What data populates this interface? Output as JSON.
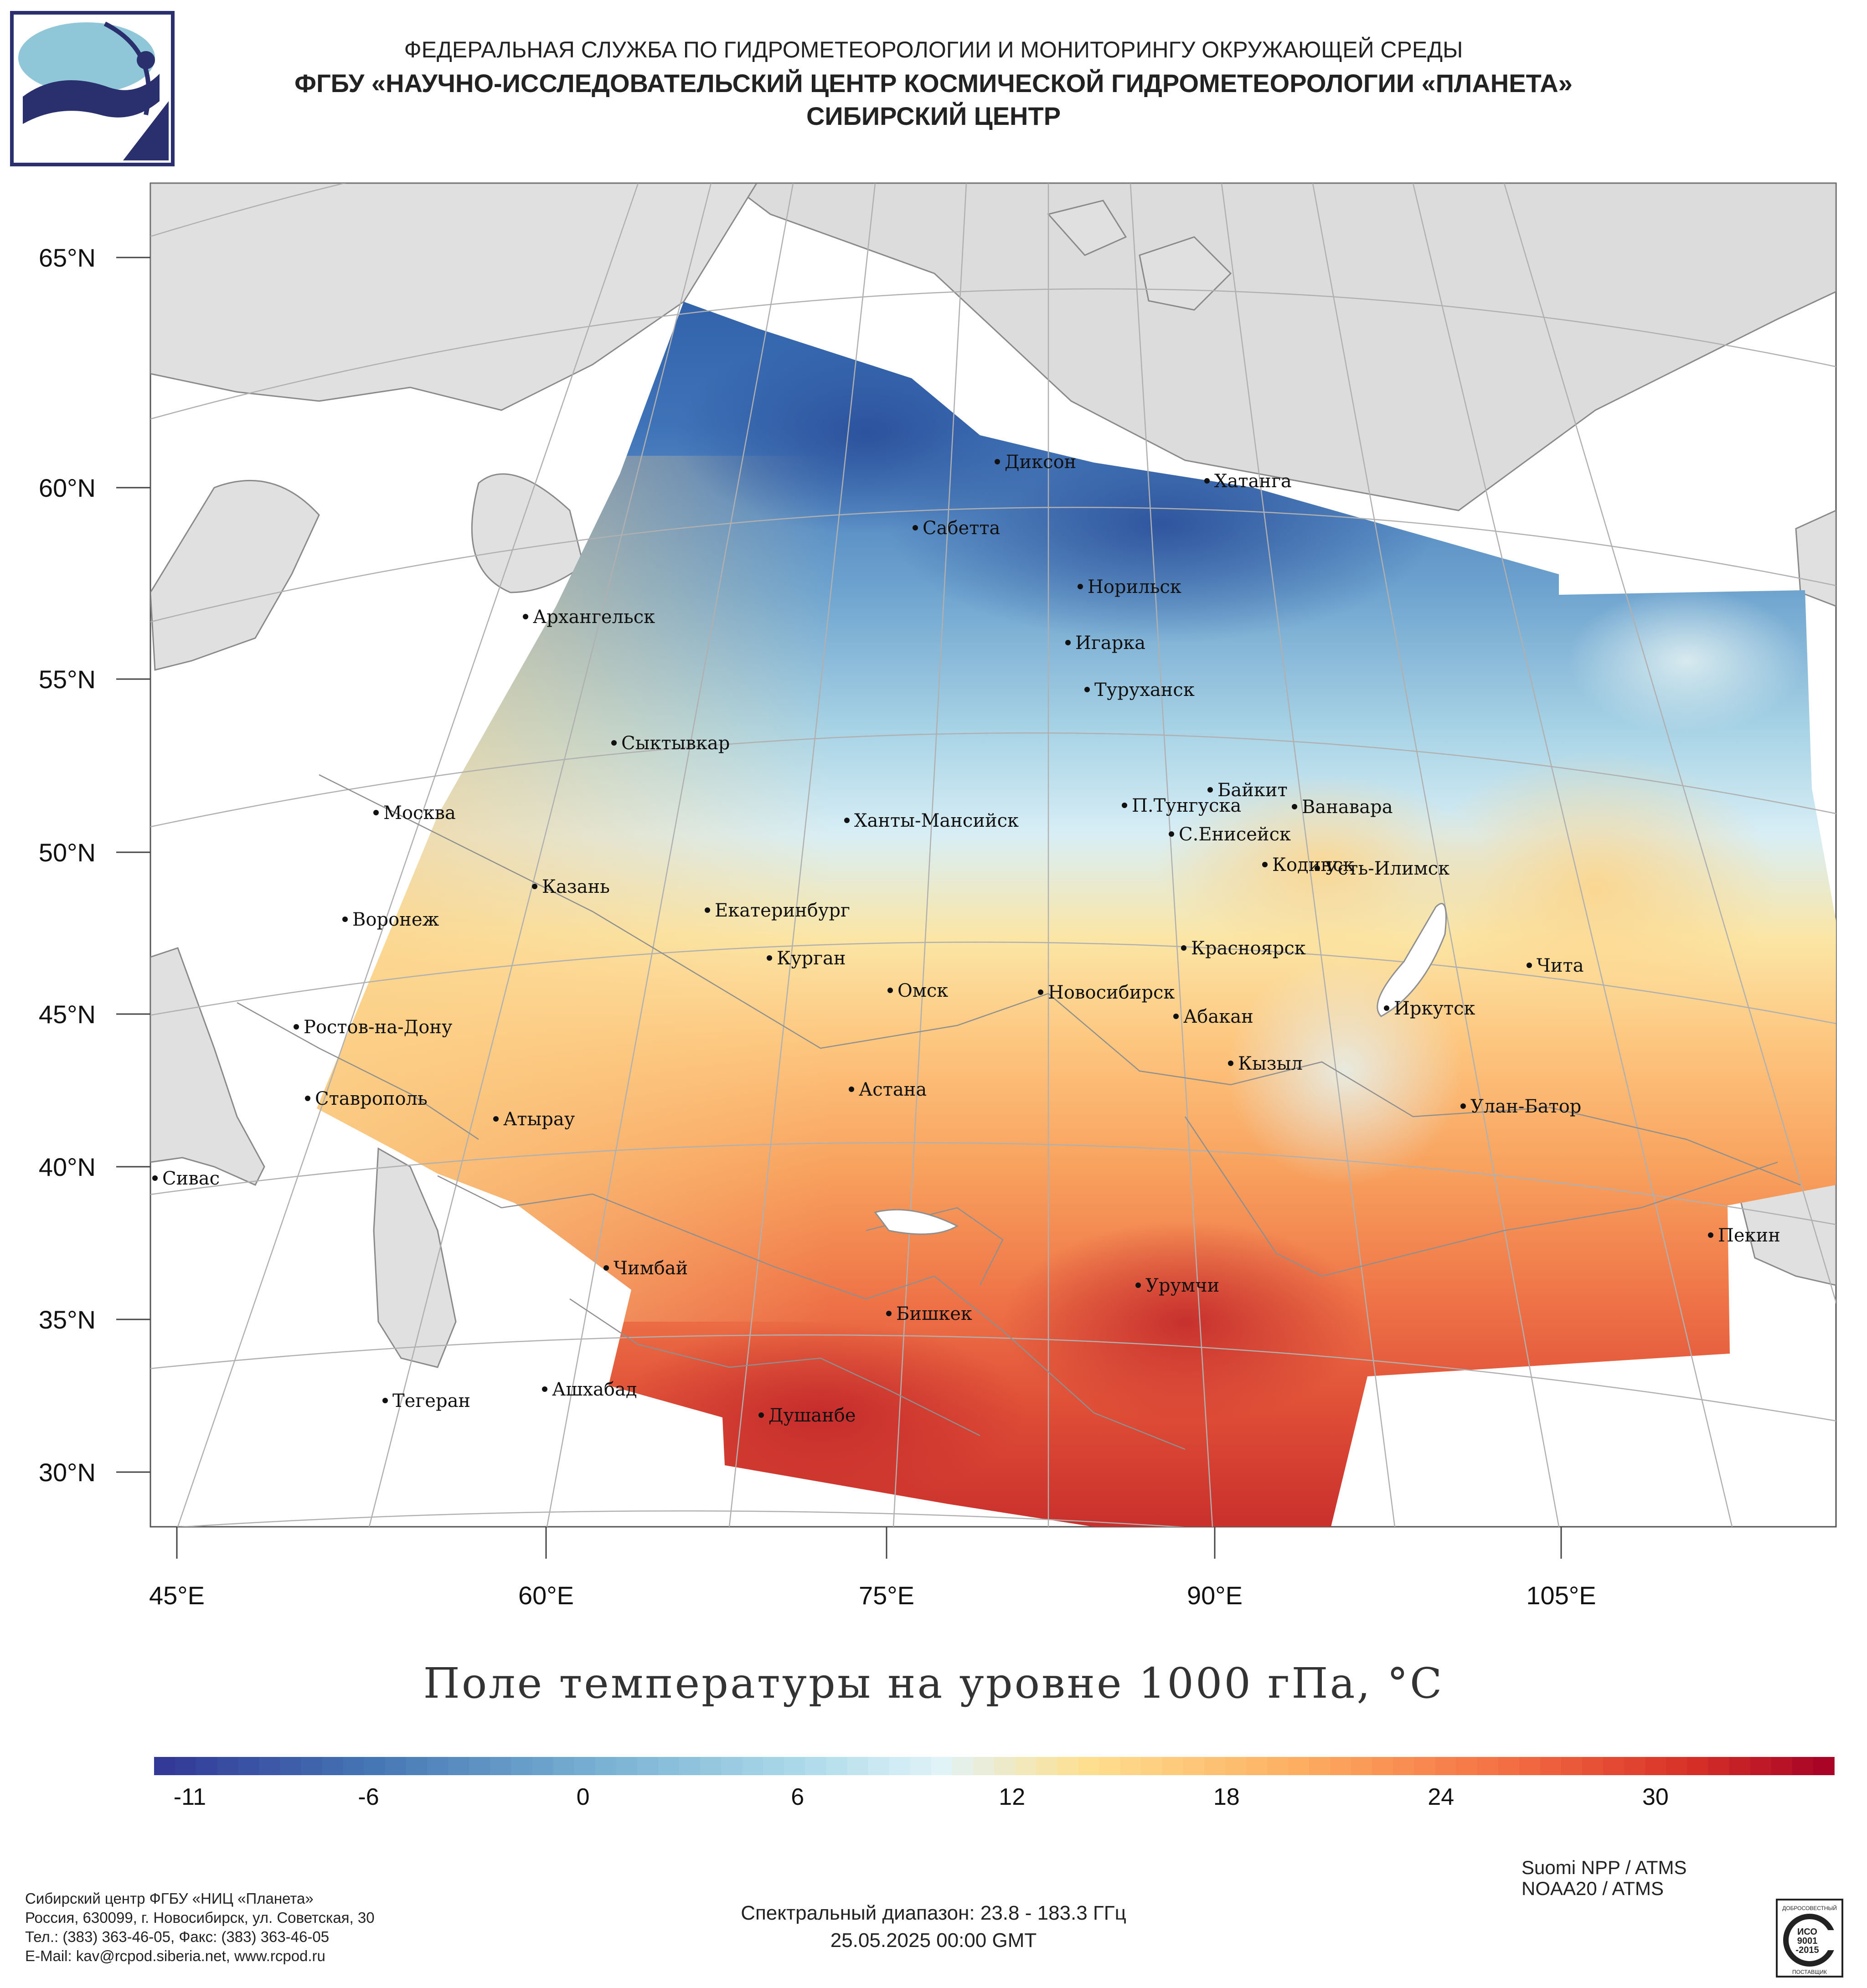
{
  "header": {
    "line1": "ФЕДЕРАЛЬНАЯ СЛУЖБА ПО ГИДРОМЕТЕОРОЛОГИИ И МОНИТОРИНГУ ОКРУЖАЮЩЕЙ СРЕДЫ",
    "line2": "ФГБУ «НАУЧНО-ИССЛЕДОВАТЕЛЬСКИЙ ЦЕНТР КОСМИЧЕСКОЙ ГИДРОМЕТЕОРОЛОГИИ «ПЛАНЕТА»",
    "line3": "СИБИРСКИЙ ЦЕНТР"
  },
  "map": {
    "lat_labels": [
      "65°N",
      "60°N",
      "55°N",
      "50°N",
      "45°N",
      "40°N",
      "35°N",
      "30°N"
    ],
    "lon_labels": [
      "45°E",
      "60°E",
      "75°E",
      "90°E",
      "105°E"
    ],
    "cities": [
      {
        "name": "Диксон"
      },
      {
        "name": "Хатанга"
      },
      {
        "name": "Сабетта"
      },
      {
        "name": "Норильск"
      },
      {
        "name": "Архангельск"
      },
      {
        "name": "Игарка"
      },
      {
        "name": "Туруханск"
      },
      {
        "name": "Сыктывкар"
      },
      {
        "name": "Байкит"
      },
      {
        "name": "П.Тунгуска"
      },
      {
        "name": "Ванавара"
      },
      {
        "name": "Москва"
      },
      {
        "name": "Ханты-Мансийск"
      },
      {
        "name": "С.Енисейск"
      },
      {
        "name": "Кодинск"
      },
      {
        "name": "Усть-Илимск"
      },
      {
        "name": "Казань"
      },
      {
        "name": "Екатеринбург"
      },
      {
        "name": "Воронеж"
      },
      {
        "name": "Красноярск"
      },
      {
        "name": "Курган"
      },
      {
        "name": "Чита"
      },
      {
        "name": "Омск"
      },
      {
        "name": "Новосибирск"
      },
      {
        "name": "Иркутск"
      },
      {
        "name": "Абакан"
      },
      {
        "name": "Ростов-на-Дону"
      },
      {
        "name": "Кызыл"
      },
      {
        "name": "Ставрополь"
      },
      {
        "name": "Астана"
      },
      {
        "name": "Улан-Батор"
      },
      {
        "name": "Атырау"
      },
      {
        "name": "Сивас"
      },
      {
        "name": "Пекин"
      },
      {
        "name": "Чимбай"
      },
      {
        "name": "Урумчи"
      },
      {
        "name": "Бишкек"
      },
      {
        "name": "Ашхабад"
      },
      {
        "name": "Тегеран"
      },
      {
        "name": "Душанбе"
      }
    ],
    "colors": {
      "land": "#e0e0e0",
      "sea": "#ffffff",
      "border": "#888888",
      "graticule": "#b5b5b5"
    }
  },
  "product": {
    "title": "Поле температуры на уровне 1000 гПа, °С",
    "colorbar": {
      "min": -12,
      "max": 35,
      "ticks": [
        "-11",
        "-6",
        "0",
        "6",
        "12",
        "18",
        "24",
        "30"
      ],
      "stops": [
        {
          "value": -12,
          "color": "#313695"
        },
        {
          "value": -6,
          "color": "#4575b4"
        },
        {
          "value": 0,
          "color": "#74add1"
        },
        {
          "value": 6,
          "color": "#abd9e9"
        },
        {
          "value": 10,
          "color": "#e0f3f8"
        },
        {
          "value": 14,
          "color": "#fee090"
        },
        {
          "value": 20,
          "color": "#fdae61"
        },
        {
          "value": 26,
          "color": "#f46d43"
        },
        {
          "value": 31,
          "color": "#d73027"
        },
        {
          "value": 35,
          "color": "#a50026"
        }
      ]
    }
  },
  "footer": {
    "org_lines": [
      "Сибирский центр ФГБУ «НИЦ «Планета»",
      "Россия, 630099, г. Новосибирск, ул. Советская, 30",
      "Тел.: (383) 363-46-05, Факс: (383) 363-46-05",
      "E-Mail: kav@rcpod.siberia.net, www.rcpod.ru"
    ],
    "satellites": [
      "Suomi NPP / ATMS",
      "NOAA20 / ATMS"
    ],
    "spectral": "Спектральный диапазон: 23.8 - 183.3 ГГц",
    "datetime": "25.05.2025 00:00 GMT",
    "iso_badge": {
      "top": "ДОБРОСОВЕСТНЫЙ",
      "middle1": "ИСО",
      "middle2": "9001",
      "middle3": "-2015",
      "bottom": "ПОСТАВЩИК"
    }
  }
}
